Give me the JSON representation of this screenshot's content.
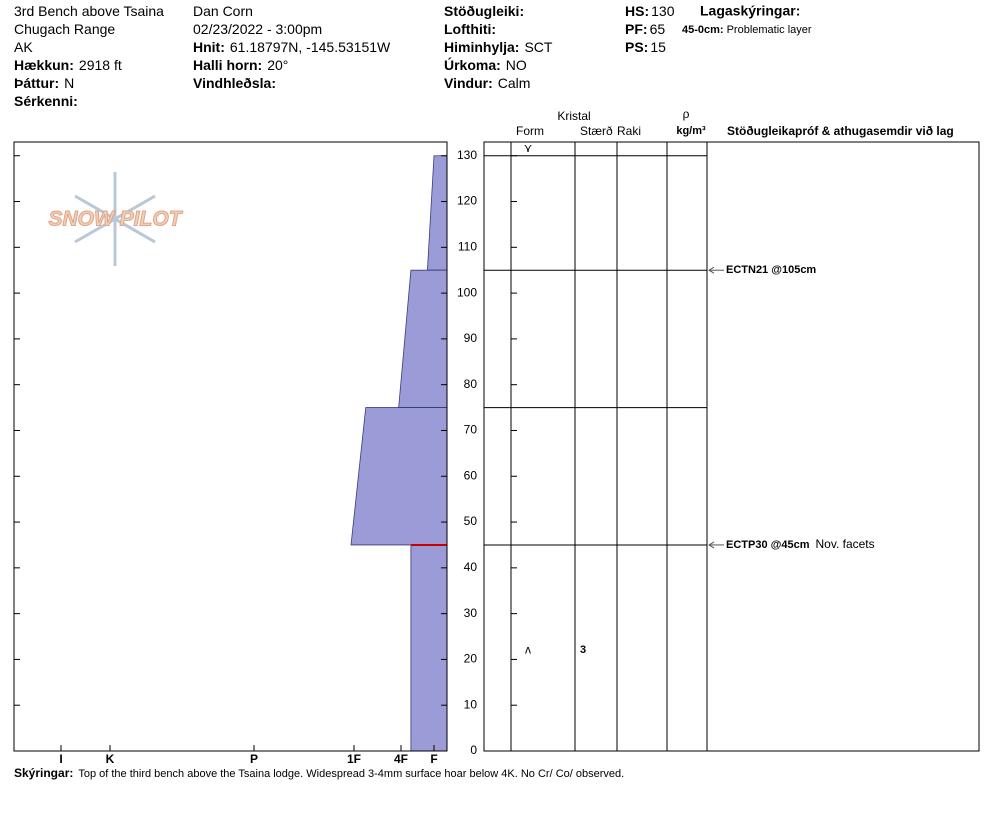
{
  "header": {
    "columns": [
      [
        {
          "text": "3rd Bench above Tsaina"
        },
        {
          "text": "Chugach Range"
        },
        {
          "text": "AK"
        },
        {
          "label": "Hækkun:",
          "value": "2918 ft"
        },
        {
          "label": "Þáttur:",
          "value": "N"
        },
        {
          "label": "Sérkenni:"
        }
      ],
      [
        {
          "text": "Dan Corn"
        },
        {
          "text": "02/23/2022 - 3:00pm"
        },
        {
          "label": "Hnit:",
          "value": "61.18797N, -145.53151W"
        },
        {
          "label": "Halli horn:",
          "value": "20°"
        },
        {
          "label": "Vindhleðsla:"
        }
      ],
      [
        {
          "label": "Stöðugleiki:"
        },
        {
          "label": "Lofthiti:"
        },
        {
          "label": "Himinhylja:",
          "value": "SCT"
        },
        {
          "label": "Úrkoma:",
          "value": "NO"
        },
        {
          "label": "Vindur:",
          "value": "Calm"
        }
      ],
      [
        {
          "label": "HS:",
          "value": 130
        },
        {
          "label": "PF:",
          "value": 65
        },
        {
          "label": "PS:",
          "value": 15
        }
      ]
    ],
    "legend": {
      "title": "Lagaskýringar:",
      "range": "45-0cm:",
      "text": "Problematic layer"
    }
  },
  "logo": "SNOW PILOT",
  "chart_data": {
    "type": "snow-profile",
    "ylim": [
      0,
      133
    ],
    "yticks": [
      0,
      10,
      20,
      30,
      40,
      50,
      60,
      70,
      80,
      90,
      100,
      110,
      120,
      130
    ],
    "xlim": [
      0,
      7
    ],
    "xticks": [
      {
        "value": 6,
        "label": "I"
      },
      {
        "value": 5,
        "label": "K"
      },
      {
        "value": 4,
        "label": "P"
      },
      {
        "value": 3,
        "label": "1F"
      },
      {
        "value": 2,
        "label": "4F"
      },
      {
        "value": 1,
        "label": "F"
      }
    ],
    "color": "#9b9bd8",
    "layers": [
      {
        "top": 130,
        "bottom": 105,
        "hardness_top": 1,
        "hardness_bottom": 1.2
      },
      {
        "top": 105,
        "bottom": 75,
        "hardness_top": 1.7,
        "hardness_bottom": 2.05
      },
      {
        "top": 75,
        "bottom": 45,
        "hardness_top": 2.75,
        "hardness_bottom": 3.03
      },
      {
        "top": 45,
        "bottom": 0,
        "hardness_top": 1.7,
        "hardness_bottom": 1.7
      }
    ],
    "problem_layer": {
      "top": 45,
      "color": "#cc0000"
    },
    "columns": {
      "crystal": "Kristal",
      "form": "Form",
      "size": "Stærð",
      "moisture": "Raki",
      "density": "ρ",
      "density_unit": "kg/m³",
      "comments": "Stöðugleikapróf & athugasemdir við lag"
    },
    "grains": [
      {
        "height": 131.5,
        "form": "⋎"
      },
      {
        "height": 22,
        "form": "ʌ",
        "size": "3"
      }
    ],
    "tests": [
      {
        "height": 105,
        "label": "ECTN21 @105cm"
      },
      {
        "height": 45,
        "label": "ECTP30 @45cm",
        "comment": "Nov. facets"
      }
    ]
  },
  "footer": {
    "label": "Skýringar:",
    "text": "Top of the third bench above the Tsaina lodge.  Widespread 3-4mm surface hoar below 4K.  No Cr/ Co/ observed."
  }
}
